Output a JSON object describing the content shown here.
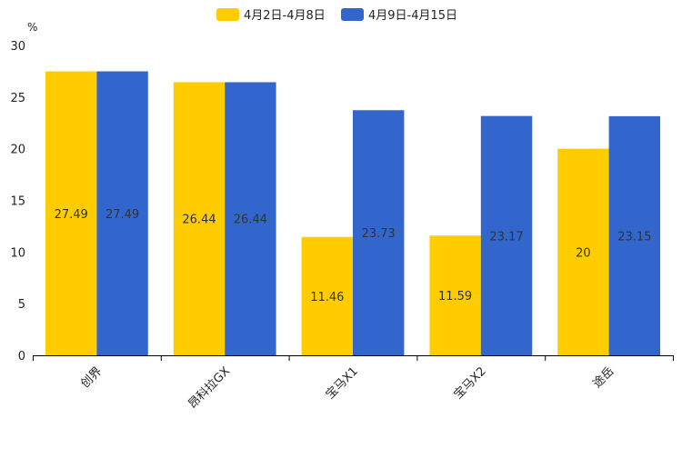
{
  "chart_data": {
    "type": "bar",
    "title": "",
    "ylabel": "%",
    "xlabel": "",
    "ylim": [
      0,
      30
    ],
    "yticks": [
      0,
      5,
      10,
      15,
      20,
      25,
      30
    ],
    "categories": [
      "创界",
      "昂科拉GX",
      "宝马X1",
      "宝马X2",
      "途岳"
    ],
    "series": [
      {
        "name": "4月2日-4月8日",
        "color": "#FFCC00",
        "values": [
          27.49,
          26.44,
          11.46,
          11.59,
          20
        ]
      },
      {
        "name": "4月9日-4月15日",
        "color": "#3366CC",
        "values": [
          27.49,
          26.44,
          23.73,
          23.17,
          23.15
        ]
      }
    ],
    "legend": "top-center",
    "grid": false
  }
}
